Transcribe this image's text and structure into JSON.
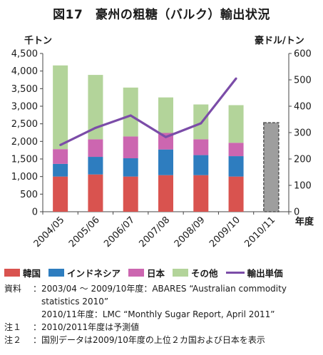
{
  "title": "図17　豪州の粗糖（バルク）輸出状況",
  "chart_data": {
    "type": "bar",
    "stacked": true,
    "categories": [
      "2004/05",
      "2005/06",
      "2006/07",
      "2007/08",
      "2008/09",
      "2009/10",
      "2010/11"
    ],
    "series": [
      {
        "name": "韓国",
        "color": "#d9534f",
        "values": [
          1000,
          1060,
          1000,
          1040,
          1040,
          1000,
          null
        ]
      },
      {
        "name": "インドネシア",
        "color": "#2e7dbf",
        "values": [
          360,
          500,
          520,
          730,
          570,
          580,
          null
        ]
      },
      {
        "name": "日本",
        "color": "#cc66b0",
        "values": [
          420,
          500,
          620,
          470,
          450,
          380,
          null
        ]
      },
      {
        "name": "その他",
        "color": "#b3d49a",
        "values": [
          2380,
          1830,
          1390,
          1010,
          990,
          1070,
          null
        ]
      }
    ],
    "forecast": {
      "category": "2010/11",
      "value": 2530,
      "color": "#9e9e9e"
    },
    "line_series": {
      "name": "輸出単価",
      "color": "#7b4ca8",
      "axis": "right",
      "values": [
        253,
        318,
        365,
        283,
        335,
        505,
        null
      ]
    },
    "y_left": {
      "label": "千トン",
      "min": 0,
      "max": 4500,
      "ticks": [
        "0",
        "500",
        "1,000",
        "1,500",
        "2,000",
        "2,500",
        "3,000",
        "3,500",
        "4,000",
        "4,500"
      ]
    },
    "y_right": {
      "label": "豪ドル/トン",
      "min": 0,
      "max": 600,
      "ticks": [
        "0",
        "100",
        "200",
        "300",
        "400",
        "500",
        "600"
      ]
    },
    "xlabel": "年度",
    "grid": false,
    "legend_position": "bottom"
  },
  "legend": {
    "items": [
      {
        "label": "韓国",
        "color": "#d9534f",
        "kind": "box"
      },
      {
        "label": "インドネシア",
        "color": "#2e7dbf",
        "kind": "box"
      },
      {
        "label": "日本",
        "color": "#cc66b0",
        "kind": "box"
      },
      {
        "label": "その他",
        "color": "#b3d49a",
        "kind": "box"
      },
      {
        "label": "輸出単価",
        "color": "#7b4ca8",
        "kind": "line"
      }
    ]
  },
  "notes": {
    "source_label": "資料",
    "source_line1": "2003/04 ～ 2009/10年度：ABARES “Australian commodity",
    "source_line2": "statistics 2010”",
    "source_line3": "2010/11年度：LMC “Monthly Sugar Report, April 2011”",
    "note1_label": "注１",
    "note1_text": "2010/2011年度は予測値",
    "note2_label": "注２",
    "note2_text": "国別データは2009/10年度の上位２カ国および日本を表示",
    "sep": "："
  }
}
